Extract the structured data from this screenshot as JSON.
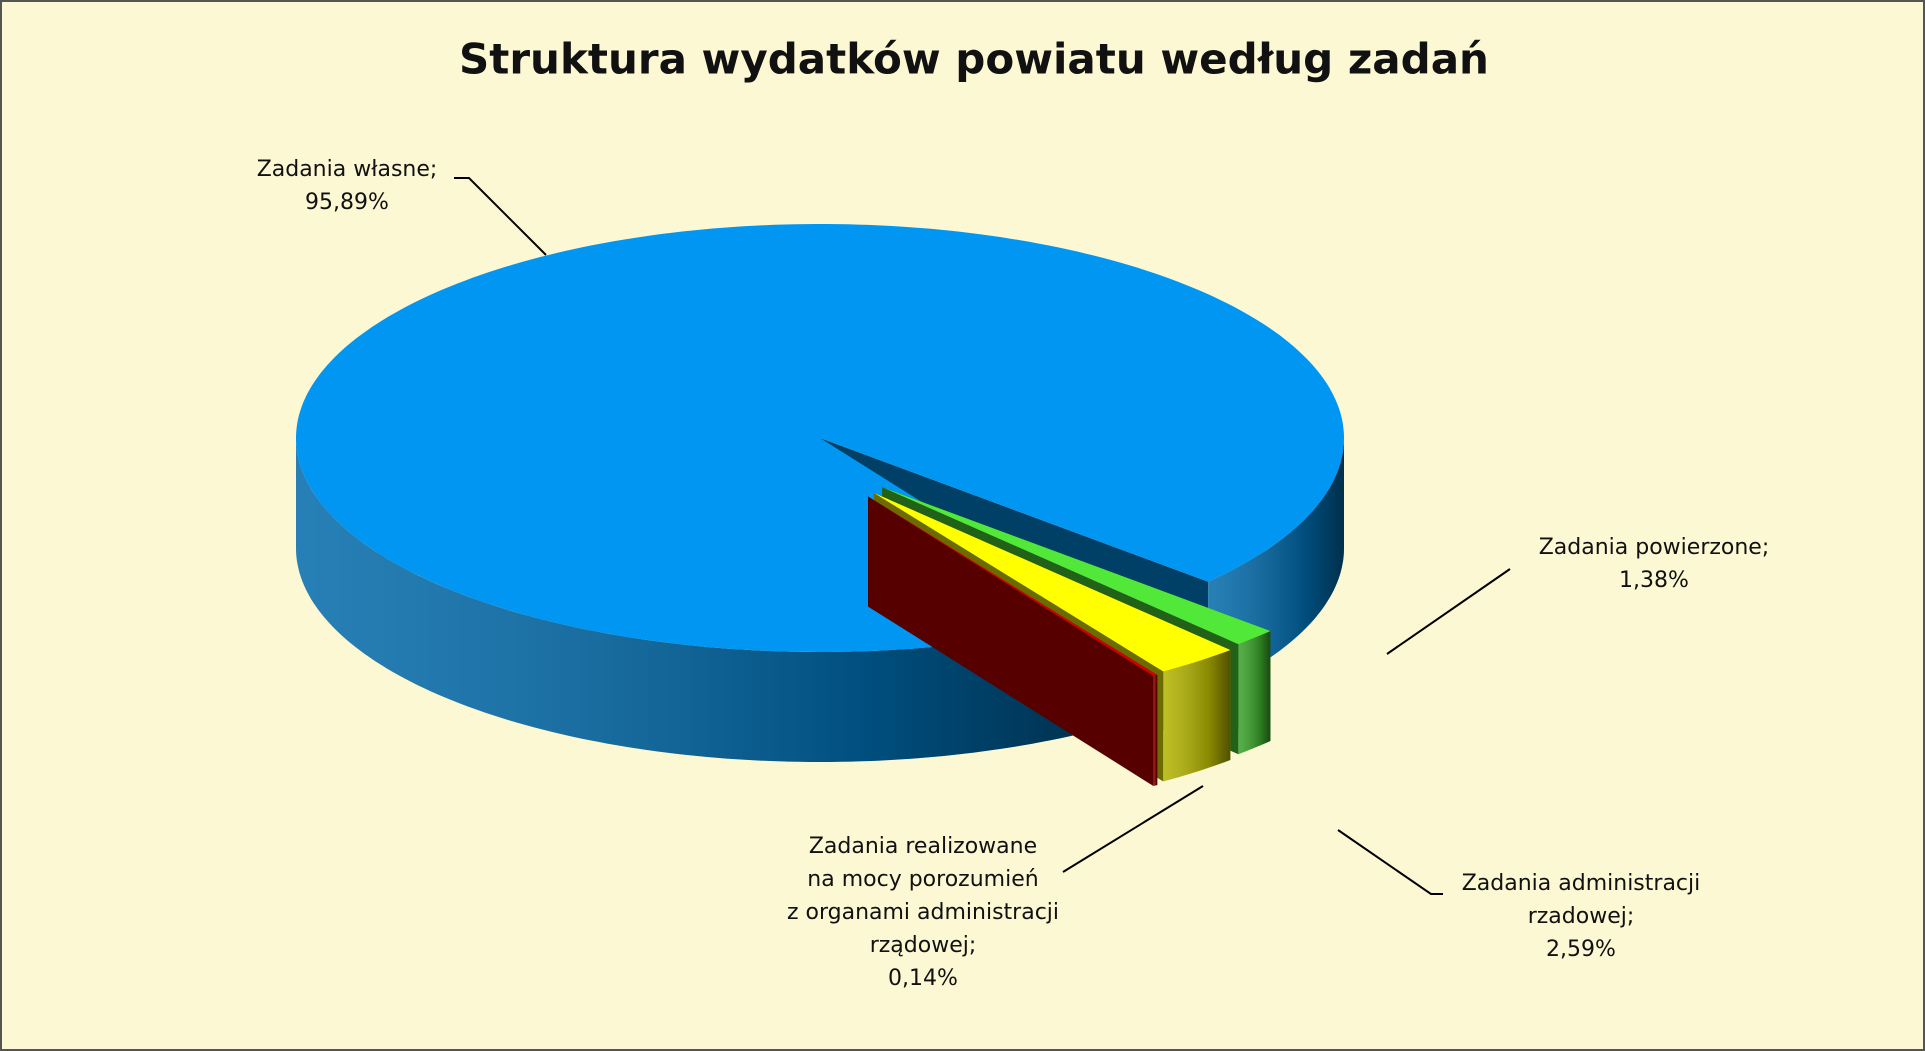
{
  "chart_data": {
    "type": "pie",
    "title": "Struktura wydatków powiatu według zadań",
    "categories": [
      "Zadania własne;",
      "Zadania powierzone;",
      "Zadania administracji rzadowej;",
      "Zadania realizowane na mocy porozumień z organami administracji rządowej;"
    ],
    "values": [
      95.89,
      1.38,
      2.59,
      0.14
    ],
    "value_labels": [
      "95,89%",
      "1,38%",
      "2,59%",
      "0,14%"
    ],
    "colors": [
      "#0096f2",
      "#52e83a",
      "#ffff00",
      "#d00000"
    ]
  }
}
